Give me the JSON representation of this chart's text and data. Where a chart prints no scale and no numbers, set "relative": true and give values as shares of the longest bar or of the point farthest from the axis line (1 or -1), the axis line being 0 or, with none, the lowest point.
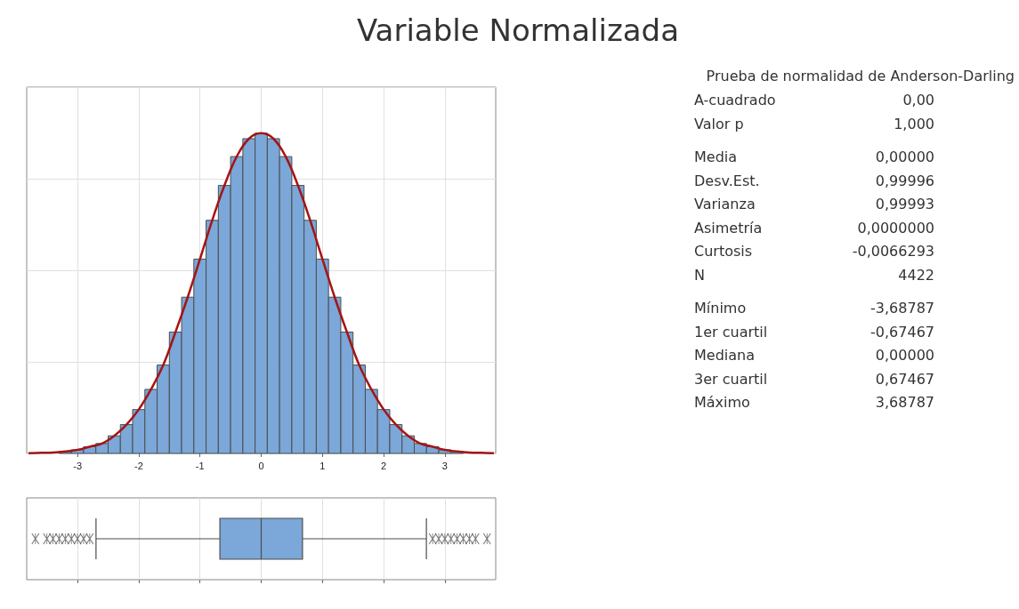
{
  "chart_data": [
    {
      "type": "histogram",
      "title": "Variable Normalizada",
      "relative": true,
      "color": "#7ba7d9",
      "bins": [
        -3.7,
        -3.5,
        -3.3,
        -3.1,
        -2.9,
        -2.7,
        -2.5,
        -2.3,
        -2.1,
        -1.9,
        -1.7,
        -1.5,
        -1.3,
        -1.1,
        -0.9,
        -0.7,
        -0.5,
        -0.3,
        -0.1,
        0.1,
        0.3,
        0.5,
        0.7,
        0.9,
        1.1,
        1.3,
        1.5,
        1.7,
        1.9,
        2.1,
        2.3,
        2.5,
        2.7,
        2.9,
        3.1,
        3.3,
        3.5,
        3.7
      ],
      "values": [
        null,
        null,
        0.006,
        0.011,
        0.021,
        0.031,
        0.055,
        0.09,
        0.137,
        0.2,
        0.276,
        0.379,
        0.488,
        0.607,
        0.728,
        0.837,
        0.927,
        0.983,
        1,
        0.983,
        0.927,
        0.837,
        0.728,
        0.607,
        0.488,
        0.379,
        0.276,
        0.2,
        0.137,
        0.09,
        0.055,
        0.031,
        0.021,
        0.011,
        0.006,
        null,
        null
      ],
      "series": [
        {
          "type": "line",
          "color": "#a31515",
          "x": [
            -3.8,
            -3.6,
            -3.4,
            -3.2,
            -3.0,
            -2.8,
            -2.6,
            -2.4,
            -2.2,
            -2.0,
            -1.8,
            -1.6,
            -1.4,
            -1.2,
            -1.0,
            -0.8,
            -0.6,
            -0.4,
            -0.2,
            0,
            0.2,
            0.4,
            0.6,
            0.8,
            1.0,
            1.2,
            1.4,
            1.6,
            1.8,
            2.0,
            2.2,
            2.4,
            2.6,
            2.8,
            3.0,
            3.2,
            3.4,
            3.6,
            3.8
          ],
          "values": [
            0.001,
            0.002,
            0.003,
            0.006,
            0.011,
            0.021,
            0.031,
            0.055,
            0.09,
            0.137,
            0.2,
            0.276,
            0.379,
            0.488,
            0.607,
            0.728,
            0.837,
            0.927,
            0.983,
            1,
            0.983,
            0.927,
            0.837,
            0.728,
            0.607,
            0.488,
            0.379,
            0.276,
            0.2,
            0.137,
            0.09,
            0.055,
            0.031,
            0.021,
            0.011,
            0.006,
            0.003,
            0.002,
            0.001
          ]
        }
      ],
      "xlim": [
        -3.83,
        3.83
      ],
      "xticks": [
        -3,
        -2,
        -1,
        0,
        1,
        2,
        3
      ],
      "grid": true
    },
    {
      "type": "box",
      "orientation": "horizontal",
      "color": "#7ba7d9",
      "categories": [
        null
      ],
      "boxes": [
        {
          "low": -2.698,
          "q1": -0.67467,
          "median": 0,
          "q3": 0.67467,
          "high": 2.698,
          "outliers": [
            -3.68787,
            -3.5,
            -3.4,
            -3.3,
            -3.2,
            -3.1,
            -3.0,
            -2.9,
            -2.8,
            2.8,
            2.9,
            3.0,
            3.1,
            3.2,
            3.3,
            3.4,
            3.5,
            3.68787
          ]
        }
      ],
      "xlim": [
        -3.83,
        3.83
      ],
      "xticks": [
        -3,
        -2,
        -1,
        0,
        1,
        2,
        3
      ],
      "tick_labels": false,
      "grid": "x"
    },
    {
      "type": "other",
      "title": "Prueba de normalidad de Anderson-Darling",
      "annotations": [
        "A-cuadrado",
        "0,00",
        "Valor p",
        "1,000",
        "Media",
        "0,00000",
        "Desv.Est.",
        "0,99996",
        "Varianza",
        "0,99993",
        "Asimetría",
        "0,0000000",
        "Curtosis",
        "-0,0066293",
        "N",
        "4422",
        "Mínimo",
        "-3,68787",
        "1er cuartil",
        "-0,67467",
        "Mediana",
        "0,00000",
        "3er cuartil",
        "0,67467",
        "Máximo",
        "3,68787"
      ]
    }
  ]
}
